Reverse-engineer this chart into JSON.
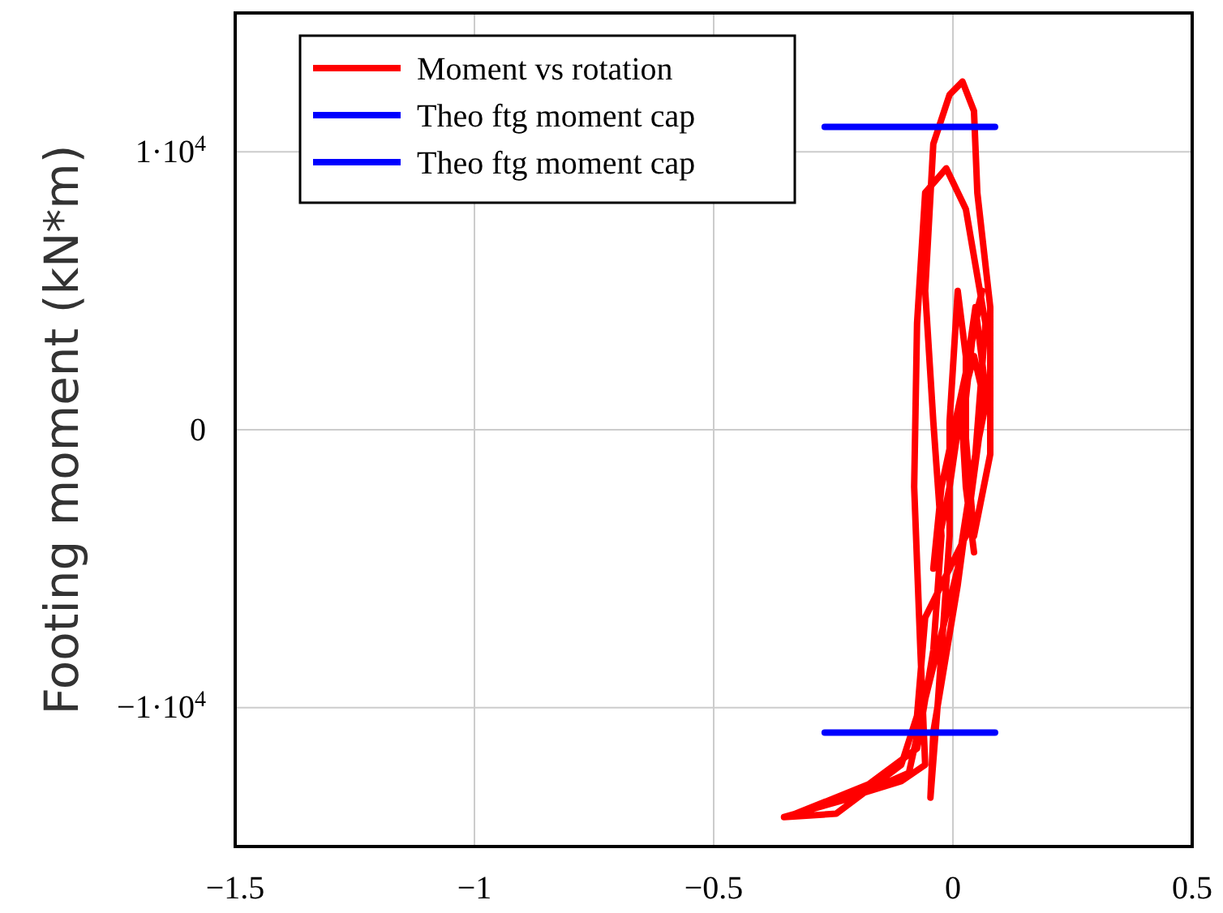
{
  "chart_data": {
    "type": "line",
    "ylabel": "Footing moment  (kN*m)",
    "xlim": [
      -1.5,
      0.5
    ],
    "ylim": [
      -15000,
      15000
    ],
    "xticks": [
      {
        "value": -1.5,
        "label": "−1.5"
      },
      {
        "value": -1,
        "label": "−1"
      },
      {
        "value": -0.5,
        "label": "−0.5"
      },
      0,
      0.5
    ],
    "yticks": [
      {
        "value": -10000,
        "label": "−1·10$^{4}$"
      },
      0,
      {
        "value": 10000,
        "label": "1·10$^{4}$"
      }
    ],
    "grid": true,
    "legend": "top left",
    "line_style": "solid",
    "marker": "none",
    "series": [
      {
        "name": "Moment vs rotation",
        "color": "#ff0000",
        "x": [
          0.02,
          0.044,
          0.061,
          0.027,
          -0.024,
          -0.041,
          -0.007,
          0.047,
          0.068,
          0.027,
          -0.058,
          -0.075,
          -0.108,
          -0.244,
          -0.353,
          -0.21,
          -0.092,
          -0.058,
          0.01,
          0.047,
          0.068,
          0.027,
          -0.014,
          -0.058,
          -0.075,
          -0.081,
          -0.068,
          -0.058,
          -0.108,
          -0.329,
          -0.176,
          -0.075,
          -0.041,
          -0.024,
          -0.041,
          -0.058,
          -0.041,
          -0.007,
          0.02,
          0.044,
          0.051,
          0.078,
          0.078,
          0.044,
          0.027,
          0.027,
          0.01,
          -0.007,
          -0.007,
          -0.031,
          -0.047,
          -0.041,
          0.01,
          0.044,
          0.068,
          0.044,
          0.017,
          0.027,
          0.044
        ],
        "values": [
          0,
          3820,
          5000,
          2060,
          -2060,
          -5000,
          -2060,
          4410,
          1470,
          -3820,
          -6760,
          -10290,
          -12060,
          -13820,
          -13940,
          -13240,
          -12350,
          -9700,
          -5000,
          -880,
          3820,
          7940,
          9410,
          8530,
          3820,
          -2060,
          -7940,
          -12060,
          -12650,
          -13820,
          -12760,
          -11470,
          -7940,
          -3820,
          290,
          5000,
          10290,
          12060,
          12530,
          11470,
          8530,
          4410,
          -880,
          -3820,
          -290,
          2650,
          5000,
          290,
          -3820,
          -9700,
          -13240,
          -10880,
          -5590,
          -1180,
          880,
          2650,
          880,
          -2060,
          -4410
        ]
      },
      {
        "name": "Theo ftg moment cap",
        "color": "#0000ff",
        "x": [
          -0.268,
          0.088
        ],
        "values": [
          10900,
          10900
        ]
      },
      {
        "name": "Theo ftg moment cap",
        "color": "#0000ff",
        "x": [
          -0.268,
          0.088
        ],
        "values": [
          -10900,
          -10900
        ]
      }
    ]
  }
}
